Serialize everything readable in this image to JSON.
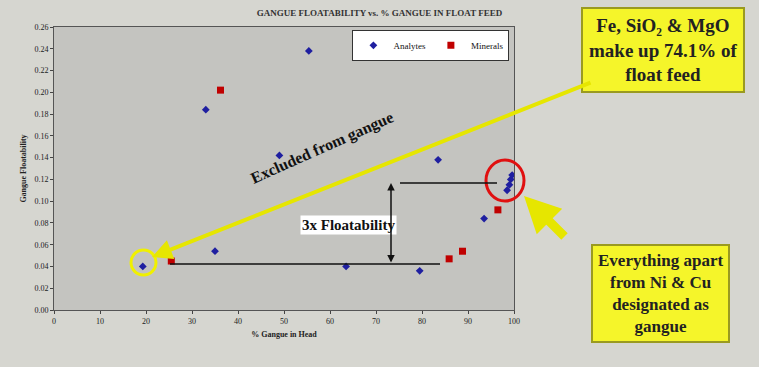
{
  "chart_data": {
    "type": "scatter",
    "title": "GANGUE FLOATABILITY vs. % GANGUE IN FLOAT FEED",
    "x_label": "% Gangue in Head",
    "y_label": "Gangue Floatability",
    "xlim": [
      0,
      100
    ],
    "xticks": [
      0,
      10,
      20,
      30,
      40,
      50,
      60,
      70,
      80,
      90,
      100
    ],
    "ylim": [
      0,
      0.26
    ],
    "yticks": [
      {
        "value": 0,
        "label": "0.00"
      },
      {
        "value": 0.02,
        "label": "0.02"
      },
      {
        "value": 0.04,
        "label": "0.04"
      },
      {
        "value": 0.06,
        "label": "0.06"
      },
      {
        "value": 0.08,
        "label": "0.08"
      },
      {
        "value": 0.1,
        "label": "0.10"
      },
      {
        "value": 0.12,
        "label": "0.12"
      },
      {
        "value": 0.14,
        "label": "0.14"
      },
      {
        "value": 0.16,
        "label": "0.16"
      },
      {
        "value": 0.18,
        "label": "0.18"
      },
      {
        "value": 0.2,
        "label": "0.20"
      },
      {
        "value": 0.22,
        "label": "0.22"
      },
      {
        "value": 0.24,
        "label": "0.24"
      },
      {
        "value": 0.26,
        "label": "0.26"
      }
    ],
    "grid": false,
    "legend": "top right",
    "series": [
      {
        "name": "Analytes",
        "color": "#1f1fa0",
        "marker": "diamond",
        "x": [
          19.3,
          33.0,
          35.0,
          49.0,
          55.4,
          63.5,
          79.5,
          83.5,
          93.5,
          98.5,
          99.0,
          99.3,
          99.6
        ],
        "values": [
          0.04,
          0.184,
          0.054,
          0.142,
          0.238,
          0.04,
          0.036,
          0.138,
          0.084,
          0.11,
          0.115,
          0.12,
          0.124
        ]
      },
      {
        "name": "Minerals",
        "color": "#c00000",
        "marker": "square",
        "x": [
          25.5,
          36.2,
          85.9,
          88.8,
          96.5
        ],
        "values": [
          0.045,
          0.202,
          0.047,
          0.054,
          0.092
        ]
      }
    ],
    "annotations": [
      "Fe, SiO₂ & MgO\nmake up 74.1% of\nfloat feed",
      "Excluded from gangue",
      "3x Floatability",
      "Everything apart\nfrom Ni & Cu\ndesignated as\ngangue"
    ]
  }
}
